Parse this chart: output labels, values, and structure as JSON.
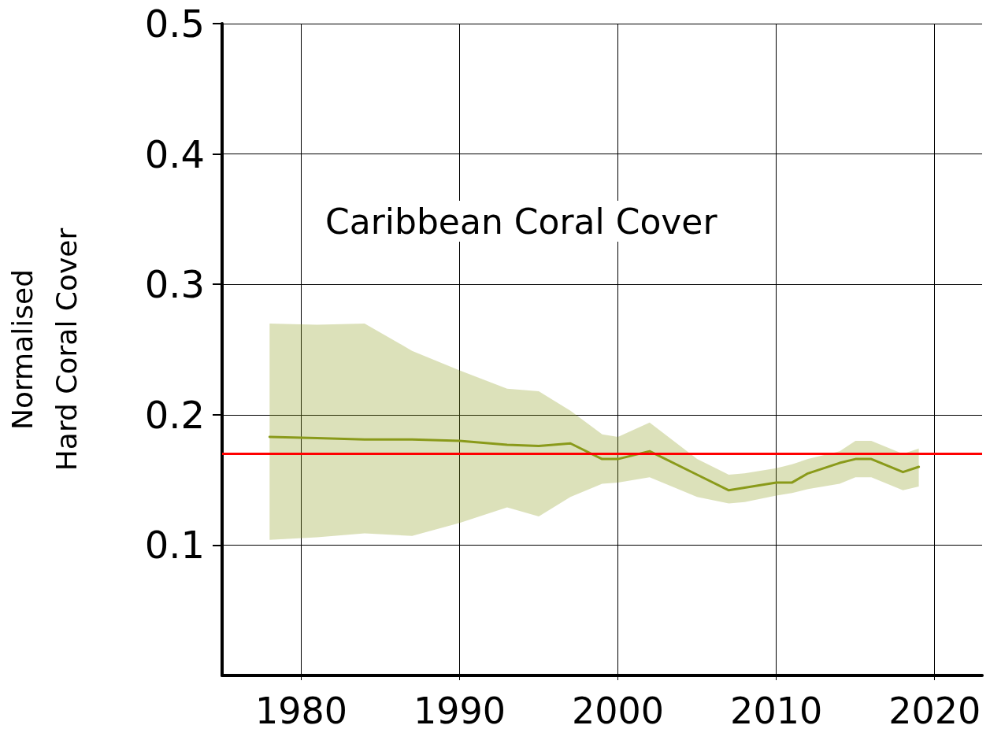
{
  "chart_data": {
    "type": "line",
    "title": "Caribbean Coral Cover",
    "ylabel": "Normalised\nHard Coral Cover",
    "xlim": [
      1975,
      2023
    ],
    "xticks": [
      1980,
      1990,
      2000,
      2010,
      2020
    ],
    "ylim": [
      0,
      0.5
    ],
    "yticks": [
      0.1,
      0.2,
      0.3,
      0.4,
      0.5
    ],
    "grid": true,
    "marker": "none",
    "line_style": "solid",
    "series": [
      {
        "color": "#8a9a1a",
        "x": [
          1978,
          1981,
          1984,
          1987,
          1990,
          1993,
          1995,
          1997,
          1999,
          2000,
          2002,
          2005,
          2007,
          2008,
          2010,
          2011,
          2012,
          2014,
          2015,
          2016,
          2018,
          2019
        ],
        "values": [
          0.183,
          0.182,
          0.181,
          0.181,
          0.18,
          0.177,
          0.176,
          0.178,
          0.166,
          0.166,
          0.172,
          0.154,
          0.142,
          0.144,
          0.148,
          0.148,
          0.155,
          0.163,
          0.166,
          0.166,
          0.156,
          0.16
        ],
        "upper": [
          0.27,
          0.269,
          0.27,
          0.249,
          0.234,
          0.22,
          0.218,
          0.203,
          0.185,
          0.183,
          0.194,
          0.166,
          0.154,
          0.155,
          0.159,
          0.162,
          0.166,
          0.172,
          0.18,
          0.18,
          0.17,
          0.174
        ],
        "lower": [
          0.104,
          0.106,
          0.109,
          0.107,
          0.117,
          0.129,
          0.122,
          0.137,
          0.147,
          0.148,
          0.152,
          0.137,
          0.132,
          0.133,
          0.138,
          0.14,
          0.143,
          0.147,
          0.152,
          0.152,
          0.142,
          0.145
        ]
      }
    ],
    "ref_lines": [
      {
        "axis": "y",
        "value": 0.169,
        "color": "#ff0000",
        "line_style": "solid"
      }
    ]
  }
}
